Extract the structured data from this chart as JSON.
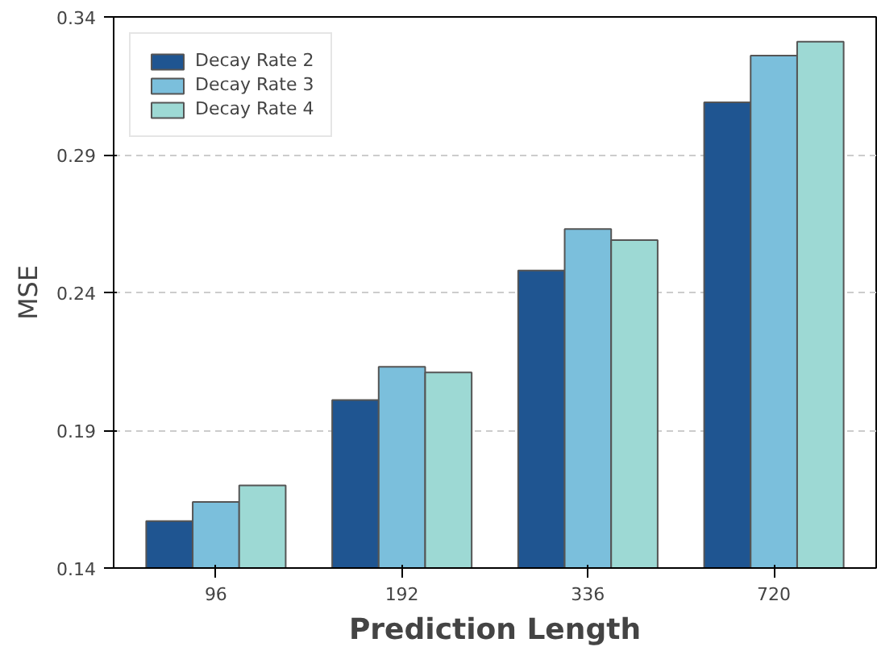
{
  "chart_data": {
    "type": "bar",
    "xlabel": "Prediction Length",
    "ylabel": "MSE",
    "categories": [
      "96",
      "192",
      "336",
      "720"
    ],
    "series": [
      {
        "name": "Decay Rate 2",
        "color": "#1f5591",
        "values": [
          0.157,
          0.201,
          0.248,
          0.309
        ]
      },
      {
        "name": "Decay Rate 3",
        "color": "#7bbfdc",
        "values": [
          0.164,
          0.213,
          0.263,
          0.326
        ]
      },
      {
        "name": "Decay Rate 4",
        "color": "#9dd9d4",
        "values": [
          0.17,
          0.211,
          0.259,
          0.331
        ]
      }
    ],
    "ylim": [
      0.14,
      0.34
    ],
    "yticks": [
      0.14,
      0.19,
      0.24,
      0.29,
      0.34
    ],
    "grid": "y",
    "legend": "top left"
  }
}
